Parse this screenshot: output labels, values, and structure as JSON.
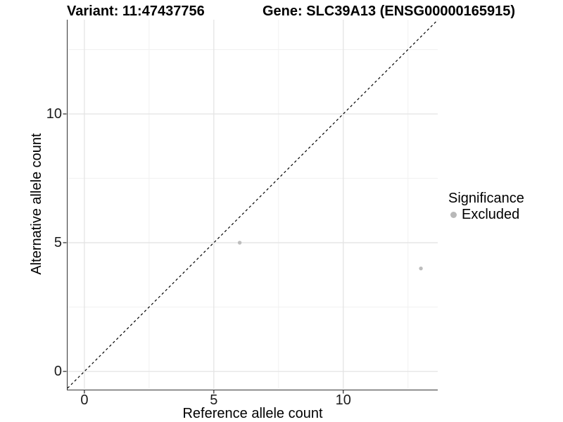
{
  "header": {
    "variant_title": "Variant: 11:47437756",
    "gene_title": "Gene: SLC39A13 (ENSG00000165915)"
  },
  "chart_data": {
    "type": "scatter",
    "title_left": "Variant: 11:47437756",
    "title_right": "Gene: SLC39A13 (ENSG00000165915)",
    "xlabel": "Reference allele count",
    "ylabel": "Alternative allele count",
    "xlim": [
      -0.65,
      13.65
    ],
    "ylim": [
      -0.68,
      13.66
    ],
    "xticks": [
      0,
      5,
      10
    ],
    "yticks": [
      0,
      5,
      10
    ],
    "minor_xticks": [
      2.5,
      7.5,
      12.5
    ],
    "minor_yticks": [
      2.5,
      7.5,
      12.5
    ],
    "grid": true,
    "series": [
      {
        "name": "Excluded",
        "color": "#bdbdbd",
        "points": [
          {
            "x": 6,
            "y": 5
          },
          {
            "x": 13,
            "y": 4
          }
        ]
      }
    ],
    "reference_line": {
      "kind": "identity",
      "style": "dashed",
      "color": "#000000"
    },
    "legend_position": "right"
  },
  "legend": {
    "title": "Significance",
    "items": [
      {
        "label": "Excluded",
        "color": "#b8b8b8"
      }
    ]
  },
  "colors": {
    "background": "#ffffff",
    "grid_major": "#e4e4e4",
    "grid_minor": "#f1f1f1",
    "axis_line": "#333333",
    "tick_mark": "#333333",
    "tick_text": "#1a1a1a",
    "point": "#bdbdbd",
    "dashed_line": "#000000"
  }
}
